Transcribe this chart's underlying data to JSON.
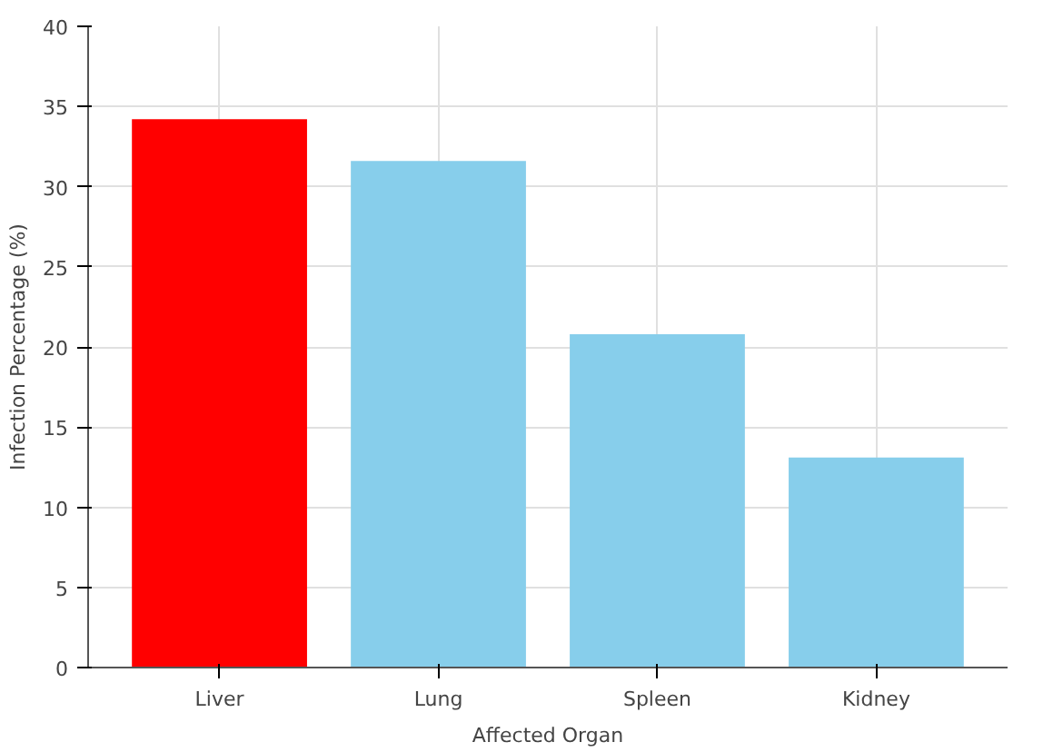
{
  "chart_data": {
    "type": "bar",
    "xlabel": "Affected Organ",
    "ylabel": "Infection Percentage (%)",
    "categories": [
      "Liver",
      "Lung",
      "Spleen",
      "Kidney"
    ],
    "values": [
      34.2,
      31.6,
      20.8,
      13.1
    ],
    "colors": [
      "#ff0000",
      "#87ceeb",
      "#87ceeb",
      "#87ceeb"
    ],
    "ylim": [
      0,
      40
    ],
    "yticks": [
      0,
      5,
      10,
      15,
      20,
      25,
      30,
      35,
      40
    ],
    "grid": true
  }
}
